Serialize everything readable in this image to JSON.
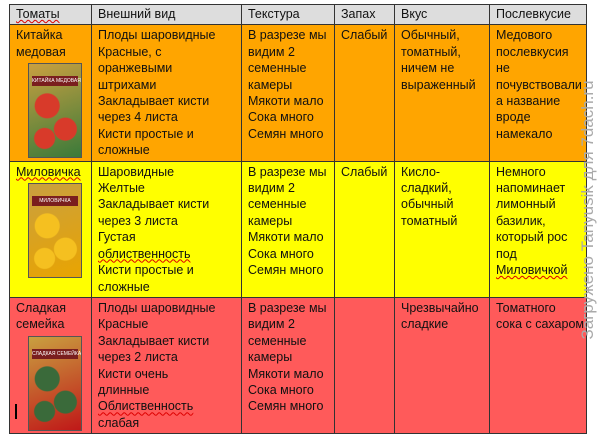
{
  "headers": [
    "Томаты",
    "Внешний вид",
    "Текстура",
    "Запах",
    "Вкус",
    "Послевкусие"
  ],
  "rows": [
    {
      "name": [
        "Китайка",
        "медовая"
      ],
      "pack_label": "КИТАЙКА МЕДОВАЯ",
      "appearance": [
        "Плоды шаровидные",
        "Красные, с",
        "оранжевыми",
        "штрихами",
        "Закладывает кисти",
        "через 4 листа",
        "Кисти простые и",
        "сложные"
      ],
      "texture": [
        "В разрезе мы",
        "видим 2",
        "семенные",
        "камеры",
        "Мякоти мало",
        "Сока много",
        "Семян много"
      ],
      "smell": "Слабый",
      "taste": [
        "Обычный,",
        "томатный,",
        "ничем не",
        "выраженный"
      ],
      "aftertaste": [
        "Медового",
        "послевкусия",
        "не",
        "почувствовали",
        "а название",
        "вроде",
        "намекало"
      ],
      "color": "#ffa500"
    },
    {
      "name": [
        "Миловичка"
      ],
      "pack_label": "МИЛОВИЧКА",
      "appearance": [
        "Шаровидные",
        "Желтые",
        "Закладывает кисти",
        "через 3 листа",
        "Густая",
        "облиственность",
        "Кисти простые и",
        "сложные"
      ],
      "texture": [
        "В разрезе мы",
        "видим 2",
        "семенные",
        "камеры",
        "Мякоти мало",
        "Сока много",
        "Семян много"
      ],
      "smell": "Слабый",
      "taste": [
        "Кисло-",
        "сладкий,",
        "обычный",
        "томатный"
      ],
      "aftertaste": [
        "Немного",
        "напоминает",
        "лимонный",
        "базилик,",
        "который рос",
        "под",
        "Миловичкой"
      ],
      "color": "#ffff00"
    },
    {
      "name": [
        "Сладкая",
        "семейка"
      ],
      "pack_label": "СЛАДКАЯ СЕМЕЙКА",
      "appearance": [
        "Плоды шаровидные",
        "Красные",
        "Закладывает кисти",
        "через 2 листа",
        "Кисти очень",
        "длинные",
        "Облиственность",
        "слабая"
      ],
      "texture": [
        "В разрезе мы",
        "видим 2",
        "семенные",
        "камеры",
        "Мякоти мало",
        "Сока много",
        "Семян много"
      ],
      "smell": "",
      "taste": [
        "Чрезвычайно",
        "сладкие"
      ],
      "aftertaste": [
        "Томатного",
        "сока с сахаром"
      ],
      "color": "#ff5a5a"
    }
  ],
  "watermark": "Загружено Tanyusik для 7dach.ru"
}
